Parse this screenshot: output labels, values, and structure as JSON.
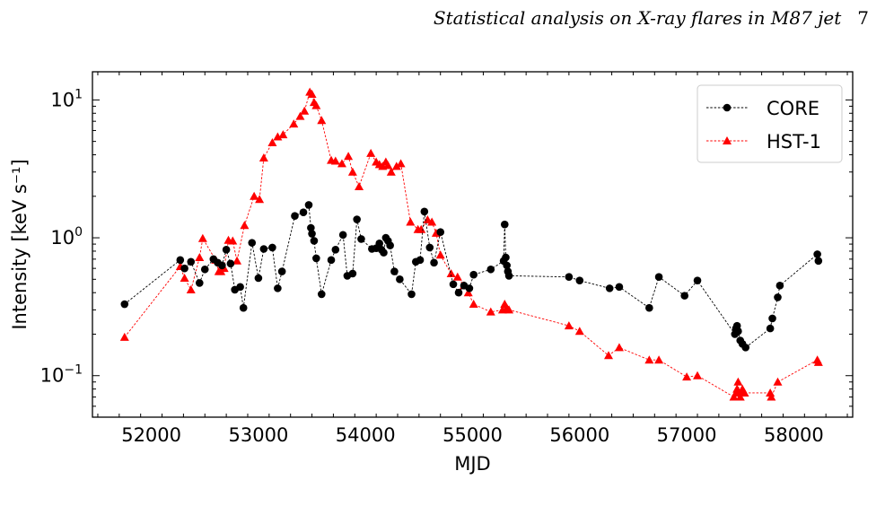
{
  "header": {
    "running_title": "Statistical analysis on X-ray flares in M87 jet",
    "page_number": "7"
  },
  "chart_data": {
    "type": "line",
    "title": "",
    "xlabel": "MJD",
    "ylabel": "Intensity [keV s⁻¹]",
    "yscale": "log",
    "xlim": [
      51450,
      58550
    ],
    "ylim": [
      0.05,
      16
    ],
    "xticks": [
      52000,
      53000,
      54000,
      55000,
      56000,
      57000,
      58000
    ],
    "yticks": [
      {
        "value": 0.1,
        "base": "10",
        "exp": "−1"
      },
      {
        "value": 1,
        "base": "10",
        "exp": "0"
      },
      {
        "value": 10,
        "base": "10",
        "exp": "1"
      }
    ],
    "grid": false,
    "legend": "top-right",
    "series": [
      {
        "name": "CORE",
        "color": "#000000",
        "marker": "circle",
        "x": [
          51750,
          52270,
          52310,
          52370,
          52450,
          52500,
          52580,
          52620,
          52660,
          52700,
          52740,
          52780,
          52830,
          52860,
          52940,
          53000,
          53050,
          53130,
          53180,
          53220,
          53340,
          53420,
          53470,
          53490,
          53500,
          53520,
          53540,
          53590,
          53680,
          53720,
          53790,
          53830,
          53880,
          53920,
          53960,
          54060,
          54100,
          54130,
          54150,
          54170,
          54190,
          54210,
          54230,
          54270,
          54320,
          54430,
          54470,
          54510,
          54550,
          54600,
          54640,
          54700,
          54820,
          54870,
          54920,
          54970,
          55010,
          55170,
          55290,
          55300,
          55310,
          55320,
          55330,
          55340,
          55900,
          56000,
          56280,
          56370,
          56650,
          56740,
          56980,
          57100,
          57450,
          57460,
          57470,
          57480,
          57500,
          57520,
          57550,
          57780,
          57800,
          57850,
          57870,
          58220,
          58230
        ],
        "values": [
          0.33,
          0.69,
          0.6,
          0.67,
          0.47,
          0.59,
          0.7,
          0.66,
          0.63,
          0.82,
          0.65,
          0.42,
          0.44,
          0.31,
          0.92,
          0.51,
          0.83,
          0.85,
          0.43,
          0.57,
          1.44,
          1.53,
          1.73,
          1.18,
          1.07,
          0.95,
          0.71,
          0.39,
          0.69,
          0.82,
          1.05,
          0.53,
          0.55,
          1.36,
          0.98,
          0.83,
          0.84,
          0.91,
          0.82,
          0.78,
          1.0,
          0.95,
          0.88,
          0.57,
          0.5,
          0.39,
          0.67,
          0.69,
          1.55,
          0.85,
          0.66,
          1.1,
          0.46,
          0.4,
          0.45,
          0.43,
          0.54,
          0.59,
          0.68,
          1.25,
          0.72,
          0.63,
          0.57,
          0.53,
          0.52,
          0.49,
          0.43,
          0.44,
          0.31,
          0.52,
          0.38,
          0.49,
          0.2,
          0.22,
          0.23,
          0.21,
          0.18,
          0.17,
          0.16,
          0.22,
          0.26,
          0.37,
          0.45,
          0.76,
          0.68
        ]
      },
      {
        "name": "HST-1",
        "color": "#ff0000",
        "marker": "triangle",
        "x": [
          51750,
          52270,
          52310,
          52370,
          52450,
          52480,
          52600,
          52630,
          52650,
          52680,
          52720,
          52760,
          52800,
          52870,
          52960,
          53010,
          53050,
          53130,
          53180,
          53230,
          53330,
          53390,
          53430,
          53480,
          53500,
          53520,
          53540,
          53590,
          53680,
          53720,
          53780,
          53840,
          53880,
          53940,
          54050,
          54100,
          54130,
          54160,
          54190,
          54210,
          54240,
          54290,
          54330,
          54420,
          54490,
          54520,
          54580,
          54620,
          54660,
          54700,
          54800,
          54860,
          54920,
          54960,
          55010,
          55170,
          55280,
          55300,
          55320,
          55340,
          55900,
          56000,
          56270,
          56370,
          56650,
          56740,
          57000,
          57100,
          57440,
          57460,
          57470,
          57480,
          57490,
          57500,
          57510,
          57520,
          57540,
          57780,
          57790,
          57850,
          58220,
          58230
        ],
        "values": [
          0.19,
          0.62,
          0.51,
          0.42,
          0.72,
          0.99,
          0.69,
          0.57,
          0.57,
          0.6,
          0.96,
          0.95,
          0.68,
          1.23,
          2.0,
          1.9,
          3.8,
          4.9,
          5.4,
          5.6,
          6.7,
          7.6,
          8.3,
          11.4,
          11.0,
          9.6,
          9.1,
          7.1,
          3.65,
          3.6,
          3.45,
          3.9,
          3.0,
          2.35,
          4.1,
          3.55,
          3.4,
          3.3,
          3.55,
          3.35,
          3.0,
          3.3,
          3.45,
          1.3,
          1.15,
          1.15,
          1.35,
          1.3,
          1.08,
          0.75,
          0.55,
          0.52,
          0.45,
          0.4,
          0.33,
          0.29,
          0.3,
          0.33,
          0.31,
          0.3,
          0.23,
          0.21,
          0.14,
          0.16,
          0.13,
          0.13,
          0.098,
          0.1,
          0.07,
          0.075,
          0.08,
          0.09,
          0.075,
          0.07,
          0.075,
          0.08,
          0.075,
          0.075,
          0.07,
          0.09,
          0.13,
          0.125
        ]
      }
    ]
  }
}
